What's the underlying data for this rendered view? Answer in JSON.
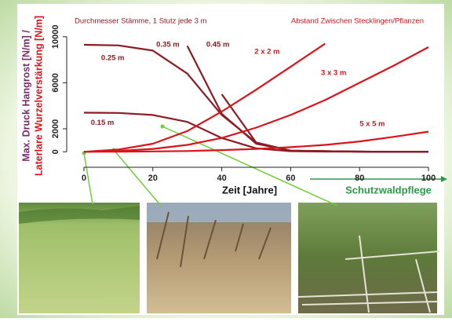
{
  "chart_data": {
    "type": "line",
    "title": "Durchmesser Stämme, 1 Stutz jede 3 m",
    "subtitle": "Abstand Zwischen Stecklingen/Pflanzen",
    "ylabel": [
      "Max. Druck Hangrost [N/m] /",
      "Laterlare Wurzelverstärkung [N/m]"
    ],
    "xlabel": "Zeit [Jahre]",
    "annotation": "Schutzwaldpflege",
    "x": [
      0,
      10,
      20,
      30,
      40,
      50,
      60,
      70,
      80,
      90,
      100
    ],
    "xlim": [
      -5,
      105
    ],
    "ylim": [
      -800,
      10600
    ],
    "xticks": [
      0,
      20,
      40,
      60,
      80,
      100
    ],
    "yticks": [
      0,
      2000,
      6000,
      10000
    ],
    "series": [
      {
        "name": "0.15 m",
        "color": "#8b1c24",
        "values": [
          3400,
          3380,
          3200,
          2600,
          1200,
          300,
          50,
          20,
          10,
          0,
          0
        ]
      },
      {
        "name": "0.25 m",
        "color": "#8b1c24",
        "values": [
          9300,
          9250,
          8800,
          6800,
          3200,
          800,
          100,
          50,
          20,
          0,
          0
        ]
      },
      {
        "name": "0.35 m",
        "color": "#8b1c24",
        "values": [
          null,
          null,
          null,
          9200,
          3300,
          700,
          100,
          50,
          20,
          0,
          0
        ]
      },
      {
        "name": "0.45 m",
        "color": "#8b1c24",
        "values": [
          null,
          null,
          null,
          null,
          5000,
          800,
          100,
          50,
          20,
          0,
          0
        ]
      },
      {
        "name": "2 x 2 m",
        "color": "#d8141c",
        "values": [
          0,
          200,
          700,
          1800,
          3500,
          5400,
          7400,
          9400,
          null,
          null,
          null
        ]
      },
      {
        "name": "3 x 3 m",
        "color": "#d8141c",
        "values": [
          0,
          80,
          250,
          600,
          1200,
          2100,
          3200,
          4500,
          6000,
          7500,
          9100
        ]
      },
      {
        "name": "5 x 5 m",
        "color": "#d8141c",
        "values": [
          0,
          10,
          30,
          70,
          150,
          250,
          400,
          600,
          900,
          1300,
          1750
        ]
      }
    ]
  }
}
